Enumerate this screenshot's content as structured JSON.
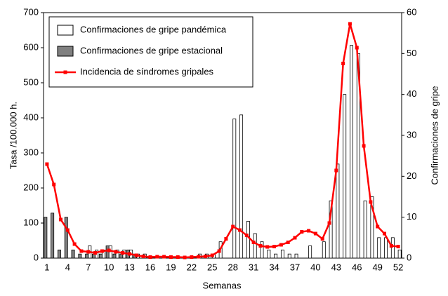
{
  "chart_data": {
    "type": "bar",
    "categories": [
      1,
      null,
      null,
      4,
      null,
      null,
      7,
      null,
      null,
      10,
      null,
      null,
      13,
      null,
      null,
      16,
      null,
      null,
      19,
      null,
      null,
      22,
      null,
      null,
      25,
      null,
      null,
      28,
      null,
      null,
      31,
      null,
      null,
      34,
      null,
      null,
      37,
      null,
      null,
      40,
      null,
      null,
      43,
      null,
      null,
      46,
      null,
      null,
      49,
      null,
      null,
      52
    ],
    "xlabel": "Semanas",
    "ylabel": "Tasa /100.000 h.",
    "y2label": "Confirmaciones de gripe",
    "ylim": [
      0,
      700
    ],
    "yticks": [
      0,
      100,
      200,
      300,
      400,
      500,
      600,
      700
    ],
    "y2lim": [
      0,
      60
    ],
    "y2ticks": [
      0,
      10,
      20,
      30,
      40,
      50,
      60
    ],
    "legend": "upper left",
    "series": [
      {
        "name": "Confirmaciones de gripe pandémica",
        "type": "bar",
        "axis": "y2",
        "color": "#ffffff",
        "values": [
          0,
          0,
          0,
          0,
          0,
          0,
          3,
          2,
          2,
          3,
          2,
          2,
          2,
          1,
          1,
          0,
          0,
          0,
          0,
          0,
          0,
          0,
          1,
          1,
          1,
          4,
          0,
          34,
          35,
          9,
          6,
          4,
          2,
          1,
          2,
          1,
          1,
          0,
          3,
          0,
          4,
          14,
          23,
          40,
          52,
          50,
          14,
          15,
          5,
          5,
          5,
          2
        ]
      },
      {
        "name": "Confirmaciones de gripe estacional",
        "type": "bar",
        "axis": "y2",
        "color": "#808080",
        "values": [
          10,
          11,
          2,
          10,
          2,
          1,
          1,
          1,
          1,
          3,
          1,
          1,
          2,
          1,
          0,
          0,
          0,
          0,
          0,
          0,
          0,
          0,
          0,
          0,
          0,
          0,
          0,
          0,
          0,
          0,
          0,
          0,
          0,
          0,
          0,
          0,
          0,
          0,
          0,
          0,
          0,
          0,
          0,
          0,
          0,
          0,
          0,
          0,
          0,
          0,
          0,
          0
        ]
      },
      {
        "name": "Incidencia de síndromes gripales",
        "type": "line",
        "color": "#ff0000",
        "values": [
          268,
          210,
          110,
          80,
          40,
          20,
          18,
          15,
          20,
          22,
          18,
          15,
          12,
          8,
          5,
          3,
          4,
          4,
          3,
          3,
          2,
          3,
          4,
          5,
          8,
          20,
          55,
          90,
          80,
          65,
          45,
          35,
          32,
          33,
          38,
          45,
          58,
          75,
          78,
          70,
          55,
          100,
          250,
          555,
          668,
          600,
          320,
          160,
          90,
          70,
          35,
          33
        ]
      }
    ]
  }
}
